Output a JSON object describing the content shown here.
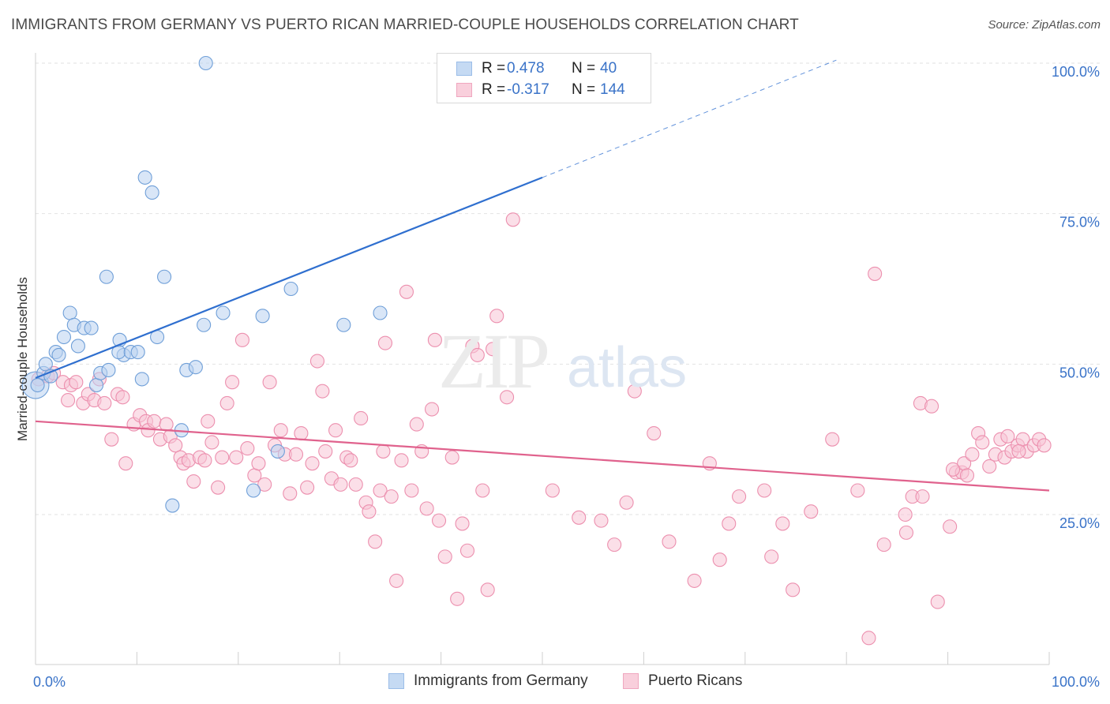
{
  "header": {
    "title": "IMMIGRANTS FROM GERMANY VS PUERTO RICAN MARRIED-COUPLE HOUSEHOLDS CORRELATION CHART",
    "source": "Source: ZipAtlas.com"
  },
  "watermark": {
    "zip": "ZIP",
    "atlas": "atlas"
  },
  "legend": {
    "rows": [
      {
        "r_label": "R =",
        "r_value": "0.478",
        "n_label": "N =",
        "n_value": "40",
        "color": "#9bbde8",
        "fill": "#c5daf3"
      },
      {
        "r_label": "R =",
        "r_value": "-0.317",
        "n_label": "N =",
        "n_value": "144",
        "color": "#f0a7bf",
        "fill": "#f9cfdc"
      }
    ]
  },
  "bottom_legend": {
    "germany": "Immigrants from Germany",
    "puerto": "Puerto Ricans"
  },
  "chart_data": {
    "type": "scatter",
    "title": "IMMIGRANTS FROM GERMANY VS PUERTO RICAN MARRIED-COUPLE HOUSEHOLDS CORRELATION CHART",
    "xlabel": "",
    "ylabel": "Married-couple Households",
    "xlim": [
      0,
      100
    ],
    "ylim": [
      0,
      105
    ],
    "x_ticks": [
      "0.0%",
      "100.0%"
    ],
    "y_ticks": [
      {
        "value": 25,
        "label": "25.0%"
      },
      {
        "value": 50,
        "label": "50.0%"
      },
      {
        "value": 75,
        "label": "75.0%"
      },
      {
        "value": 100,
        "label": "100.0%"
      }
    ],
    "grid": true,
    "legend_position": "top-center",
    "series": [
      {
        "name": "Immigrants from Germany",
        "color": "#6f9fd8",
        "fill": "#b9d2f0",
        "trend": {
          "x0": 0,
          "y0": 47.7,
          "x1": 50,
          "y1": 81.0,
          "dashed_to_x": 79,
          "dashed_to_y": 100.5,
          "color": "#2f6fcf"
        },
        "points": [
          [
            0.0,
            46.5
          ],
          [
            0.8,
            48.5
          ],
          [
            1.0,
            50.0
          ],
          [
            2.0,
            52.0
          ],
          [
            2.3,
            51.5
          ],
          [
            2.8,
            54.5
          ],
          [
            3.4,
            58.5
          ],
          [
            3.8,
            56.5
          ],
          [
            4.2,
            53.0
          ],
          [
            4.8,
            56.0
          ],
          [
            5.5,
            56.0
          ],
          [
            6.0,
            46.5
          ],
          [
            6.4,
            48.5
          ],
          [
            7.2,
            49.0
          ],
          [
            7.0,
            64.5
          ],
          [
            8.3,
            54.0
          ],
          [
            8.7,
            51.5
          ],
          [
            8.2,
            52.0
          ],
          [
            9.4,
            52.0
          ],
          [
            10.1,
            52.0
          ],
          [
            10.5,
            47.5
          ],
          [
            10.8,
            81.0
          ],
          [
            11.5,
            78.5
          ],
          [
            12.0,
            54.5
          ],
          [
            12.7,
            64.5
          ],
          [
            13.5,
            26.5
          ],
          [
            14.4,
            39.0
          ],
          [
            14.9,
            49.0
          ],
          [
            15.8,
            49.5
          ],
          [
            16.6,
            56.5
          ],
          [
            16.8,
            100.0
          ],
          [
            18.5,
            58.5
          ],
          [
            21.5,
            29.0
          ],
          [
            22.4,
            58.0
          ],
          [
            23.9,
            35.5
          ],
          [
            25.2,
            62.5
          ],
          [
            30.4,
            56.5
          ],
          [
            34.0,
            58.5
          ],
          [
            0.2,
            46.5
          ],
          [
            1.5,
            48.0
          ]
        ]
      },
      {
        "name": "Puerto Ricans",
        "color": "#ec8fae",
        "fill": "#f7c4d5",
        "trend": {
          "x0": 0,
          "y0": 40.5,
          "x1": 100,
          "y1": 29.0,
          "color": "#e0628d"
        },
        "points": [
          [
            0.3,
            47.5
          ],
          [
            1.2,
            48.0
          ],
          [
            1.8,
            48.5
          ],
          [
            2.7,
            47.0
          ],
          [
            3.2,
            44.0
          ],
          [
            3.5,
            46.5
          ],
          [
            4.0,
            47.0
          ],
          [
            4.7,
            43.5
          ],
          [
            5.2,
            45.0
          ],
          [
            5.8,
            44.0
          ],
          [
            6.3,
            47.5
          ],
          [
            6.8,
            43.5
          ],
          [
            7.5,
            37.5
          ],
          [
            8.1,
            45.0
          ],
          [
            8.6,
            44.5
          ],
          [
            8.9,
            33.5
          ],
          [
            9.7,
            40.0
          ],
          [
            10.3,
            41.5
          ],
          [
            10.9,
            40.5
          ],
          [
            11.1,
            39.0
          ],
          [
            11.7,
            40.5
          ],
          [
            12.3,
            37.5
          ],
          [
            12.9,
            40.0
          ],
          [
            13.3,
            38.0
          ],
          [
            13.8,
            36.5
          ],
          [
            14.3,
            34.5
          ],
          [
            14.6,
            33.5
          ],
          [
            15.1,
            34.0
          ],
          [
            15.6,
            30.5
          ],
          [
            16.2,
            34.5
          ],
          [
            16.7,
            34.0
          ],
          [
            17.0,
            40.5
          ],
          [
            17.4,
            37.0
          ],
          [
            18.0,
            29.5
          ],
          [
            18.4,
            34.5
          ],
          [
            18.9,
            43.5
          ],
          [
            19.4,
            47.0
          ],
          [
            19.8,
            34.5
          ],
          [
            20.4,
            54.0
          ],
          [
            20.9,
            36.0
          ],
          [
            21.6,
            31.5
          ],
          [
            22.0,
            33.5
          ],
          [
            22.6,
            30.0
          ],
          [
            23.1,
            47.0
          ],
          [
            23.6,
            36.5
          ],
          [
            24.2,
            39.0
          ],
          [
            24.6,
            35.0
          ],
          [
            25.1,
            28.5
          ],
          [
            25.7,
            35.0
          ],
          [
            26.2,
            38.5
          ],
          [
            26.8,
            29.5
          ],
          [
            27.3,
            33.5
          ],
          [
            27.8,
            50.5
          ],
          [
            28.3,
            45.5
          ],
          [
            28.6,
            35.5
          ],
          [
            29.2,
            31.0
          ],
          [
            29.6,
            39.0
          ],
          [
            30.1,
            30.0
          ],
          [
            30.7,
            34.5
          ],
          [
            31.1,
            34.0
          ],
          [
            31.6,
            30.0
          ],
          [
            32.1,
            41.0
          ],
          [
            32.6,
            27.0
          ],
          [
            32.9,
            25.5
          ],
          [
            33.5,
            20.5
          ],
          [
            34.0,
            29.0
          ],
          [
            34.3,
            35.5
          ],
          [
            34.5,
            53.5
          ],
          [
            35.1,
            28.0
          ],
          [
            35.6,
            14.0
          ],
          [
            36.1,
            34.0
          ],
          [
            36.6,
            62.0
          ],
          [
            37.1,
            29.0
          ],
          [
            37.6,
            40.0
          ],
          [
            38.1,
            35.5
          ],
          [
            38.6,
            26.0
          ],
          [
            39.1,
            42.5
          ],
          [
            39.4,
            54.0
          ],
          [
            39.8,
            24.0
          ],
          [
            40.4,
            18.0
          ],
          [
            41.1,
            34.5
          ],
          [
            41.6,
            11.0
          ],
          [
            42.1,
            23.5
          ],
          [
            42.6,
            19.0
          ],
          [
            43.1,
            53.0
          ],
          [
            43.6,
            51.5
          ],
          [
            44.1,
            29.0
          ],
          [
            44.6,
            12.5
          ],
          [
            45.1,
            52.5
          ],
          [
            45.5,
            58.0
          ],
          [
            46.5,
            44.5
          ],
          [
            47.1,
            74.0
          ],
          [
            51.0,
            29.0
          ],
          [
            53.6,
            24.5
          ],
          [
            55.8,
            24.0
          ],
          [
            57.1,
            20.0
          ],
          [
            58.3,
            27.0
          ],
          [
            59.1,
            45.5
          ],
          [
            62.5,
            20.5
          ],
          [
            61.0,
            38.5
          ],
          [
            65.0,
            14.0
          ],
          [
            66.5,
            33.5
          ],
          [
            67.5,
            17.5
          ],
          [
            68.4,
            23.5
          ],
          [
            69.4,
            28.0
          ],
          [
            71.9,
            29.0
          ],
          [
            72.6,
            18.0
          ],
          [
            73.7,
            23.5
          ],
          [
            74.7,
            12.5
          ],
          [
            76.5,
            25.5
          ],
          [
            78.6,
            37.5
          ],
          [
            81.1,
            29.0
          ],
          [
            82.2,
            4.5
          ],
          [
            82.8,
            65.0
          ],
          [
            83.7,
            20.0
          ],
          [
            85.9,
            22.0
          ],
          [
            85.8,
            25.0
          ],
          [
            86.5,
            28.0
          ],
          [
            87.3,
            43.5
          ],
          [
            87.5,
            28.0
          ],
          [
            88.4,
            43.0
          ],
          [
            89.0,
            10.5
          ],
          [
            90.2,
            23.0
          ],
          [
            90.8,
            32.0
          ],
          [
            91.4,
            32.0
          ],
          [
            91.6,
            33.5
          ],
          [
            91.9,
            31.5
          ],
          [
            92.4,
            35.0
          ],
          [
            93.0,
            38.5
          ],
          [
            93.4,
            37.0
          ],
          [
            94.1,
            33.0
          ],
          [
            94.7,
            35.0
          ],
          [
            95.2,
            37.5
          ],
          [
            95.6,
            34.5
          ],
          [
            95.9,
            38.0
          ],
          [
            96.3,
            35.5
          ],
          [
            96.9,
            36.5
          ],
          [
            97.4,
            37.5
          ],
          [
            97.8,
            35.5
          ],
          [
            98.5,
            36.5
          ],
          [
            99.0,
            37.5
          ],
          [
            99.5,
            36.5
          ],
          [
            90.5,
            32.5
          ],
          [
            97.0,
            35.5
          ]
        ]
      }
    ]
  }
}
